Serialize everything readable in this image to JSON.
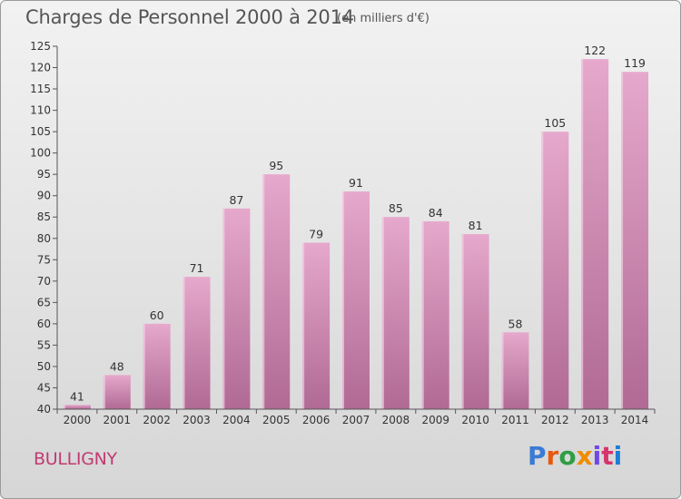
{
  "title": "Charges de Personnel 2000 à 2014",
  "subtitle": "(en milliers d'€)",
  "commune": "BULLIGNY",
  "logo": {
    "letters": [
      "P",
      "r",
      "o",
      "x",
      "i",
      "t",
      "i"
    ],
    "colors": [
      "#3a7bd5",
      "#e8590c",
      "#2f9e44",
      "#f08c00",
      "#7048e8",
      "#d6336c",
      "#1c7ed6"
    ]
  },
  "colors": {
    "bar_top": "#e6a8cc",
    "bar_bottom": "#b06a94",
    "axis": "#555555",
    "grid": "#c8c8c8",
    "commune": "#c13a72"
  },
  "chart_data": {
    "type": "bar",
    "categories": [
      "2000",
      "2001",
      "2002",
      "2003",
      "2004",
      "2005",
      "2006",
      "2007",
      "2008",
      "2009",
      "2010",
      "2011",
      "2012",
      "2013",
      "2014"
    ],
    "values": [
      41,
      48,
      60,
      71,
      87,
      95,
      79,
      91,
      85,
      84,
      81,
      58,
      105,
      122,
      119
    ],
    "ylim": [
      40,
      125
    ],
    "yticks": [
      40,
      45,
      50,
      55,
      60,
      65,
      70,
      75,
      80,
      85,
      90,
      95,
      100,
      105,
      110,
      115,
      120,
      125
    ],
    "data_labels": true,
    "grid": false
  }
}
